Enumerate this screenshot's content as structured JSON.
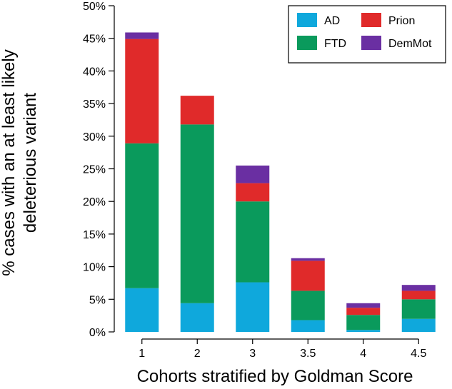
{
  "chart_data": {
    "type": "bar",
    "stacked": true,
    "categories": [
      "1",
      "2",
      "3",
      "3.5",
      "4",
      "4.5"
    ],
    "series": [
      {
        "name": "AD",
        "color": "#0fa8dc",
        "values": [
          6.7,
          4.4,
          7.6,
          1.8,
          0.3,
          2.0
        ]
      },
      {
        "name": "FTD",
        "color": "#0a9a5c",
        "values": [
          22.2,
          27.4,
          12.4,
          4.5,
          2.3,
          3.0
        ]
      },
      {
        "name": "Prion",
        "color": "#e02a2a",
        "values": [
          16.0,
          4.4,
          2.8,
          4.6,
          1.1,
          1.3
        ]
      },
      {
        "name": "DemMot",
        "color": "#6a2fa2",
        "values": [
          1.0,
          0.0,
          2.7,
          0.4,
          0.7,
          0.9
        ]
      }
    ],
    "xlabel": "Cohorts stratified by Goldman Score",
    "ylabel_line1": "% cases with an at least likely",
    "ylabel_line2": "deleterious variant",
    "ylim": [
      0,
      50
    ],
    "yticks": [
      "0%",
      "5%",
      "10%",
      "15%",
      "20%",
      "25%",
      "30%",
      "35%",
      "40%",
      "45%",
      "50%"
    ],
    "legend": {
      "position": "top-right",
      "order": [
        "AD",
        "Prion",
        "FTD",
        "DemMot"
      ]
    },
    "grid": false
  }
}
